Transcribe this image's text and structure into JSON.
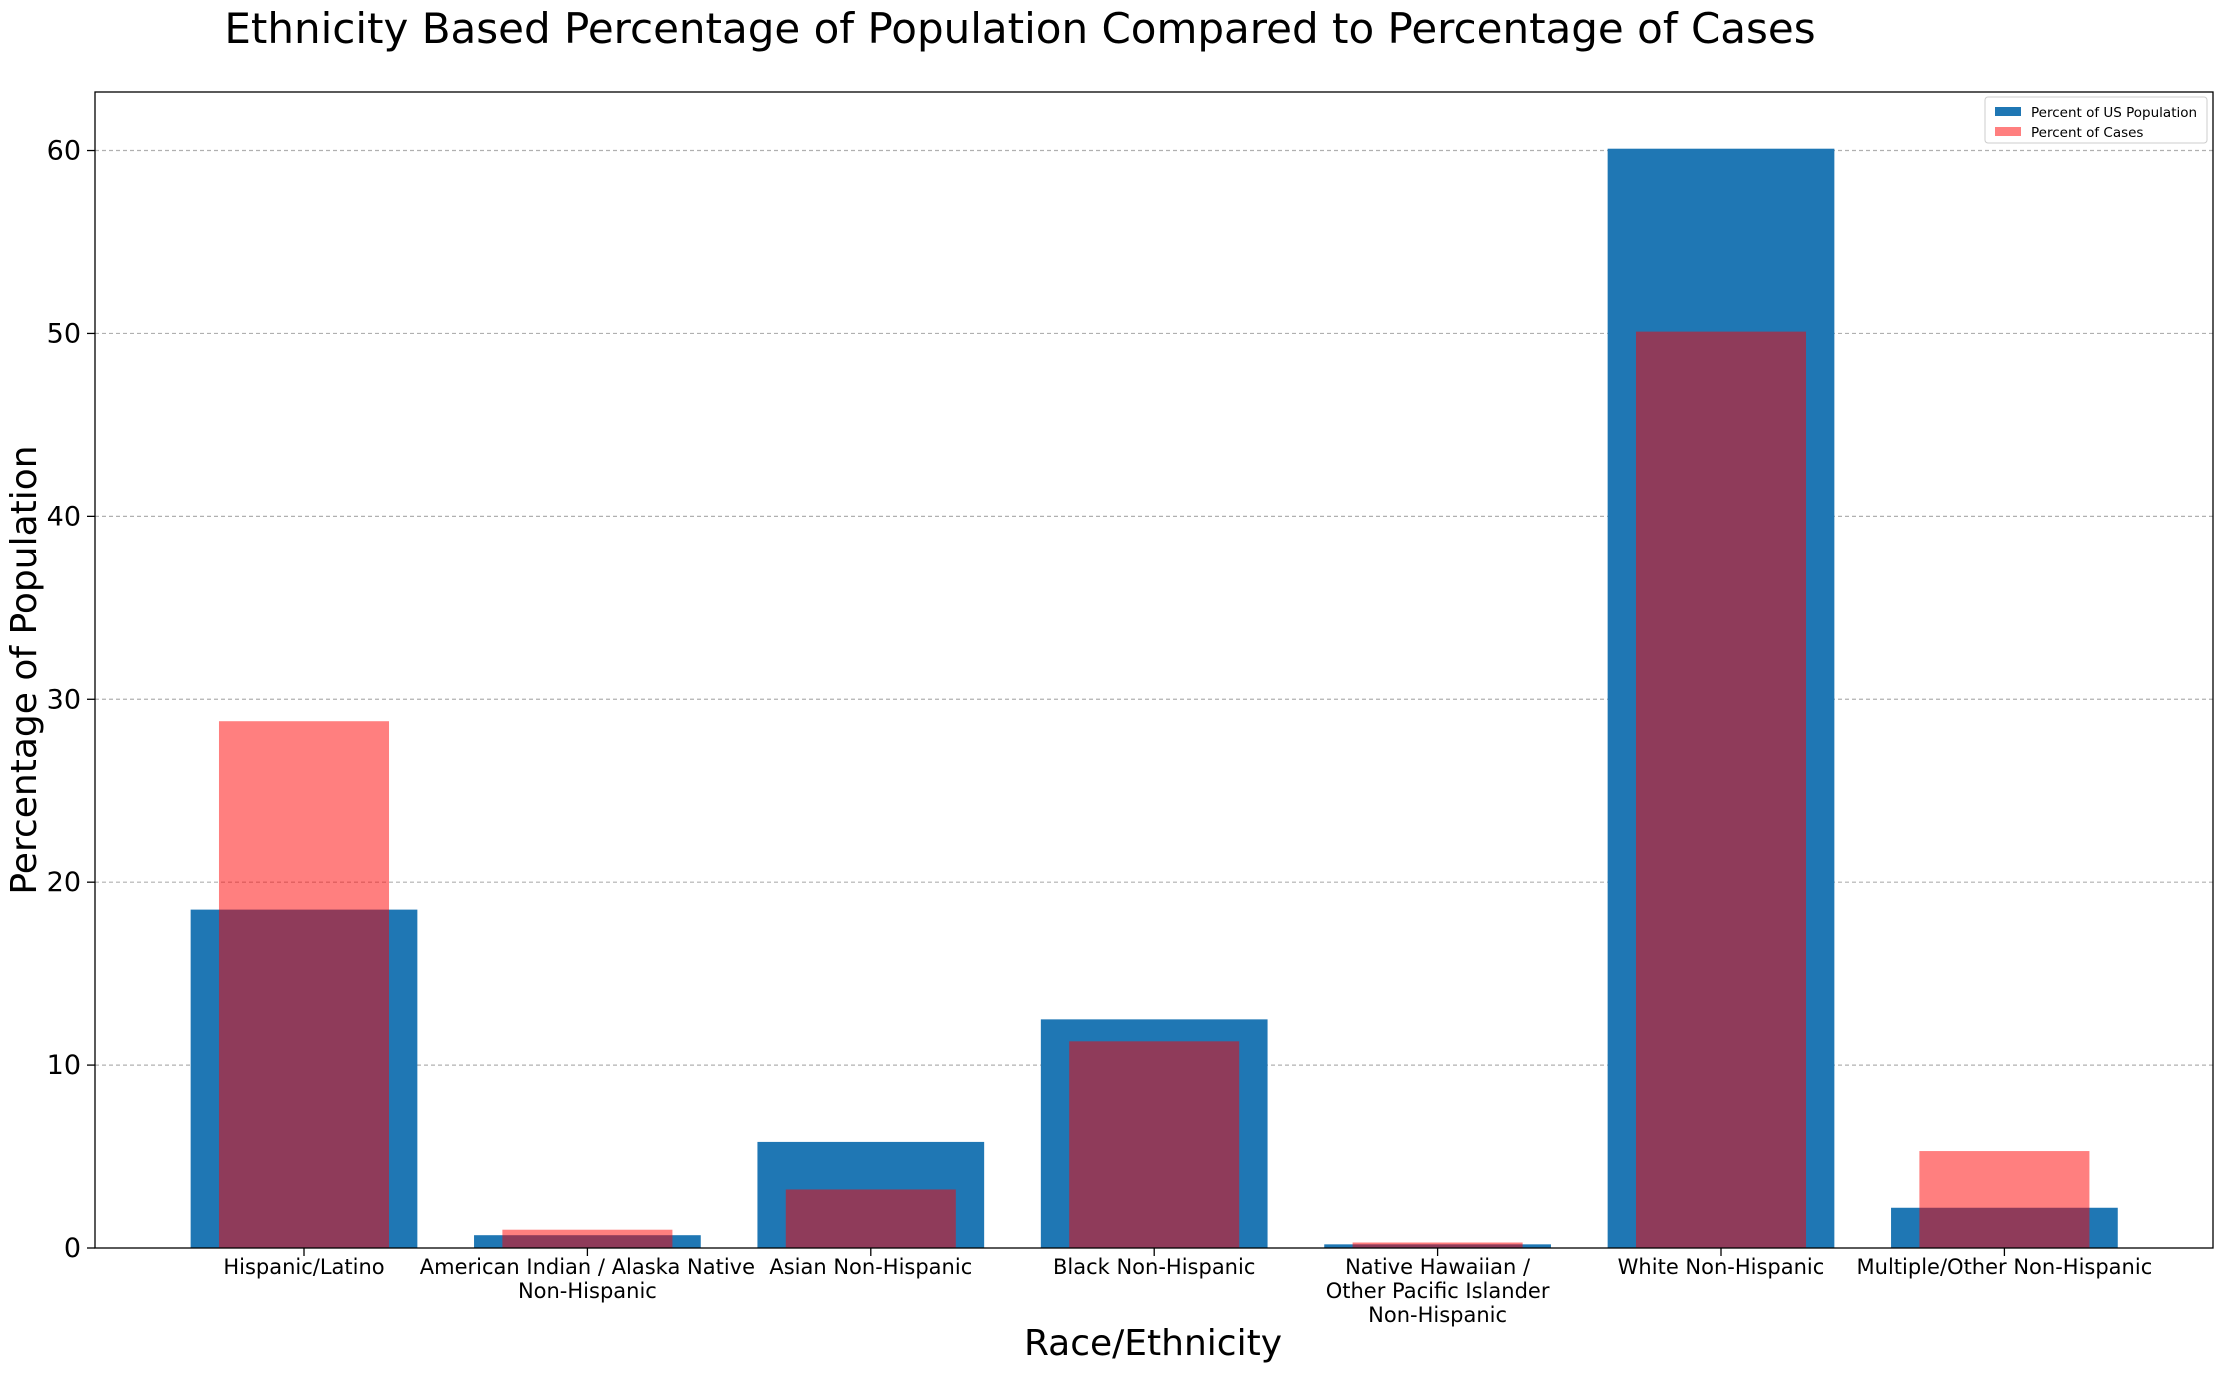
{
  "chart_data": {
    "type": "bar",
    "title": "Ethnicity Based Percentage of Population Compared to Percentage of Cases",
    "xlabel": "Race/Ethnicity",
    "ylabel": "Percentage of Population",
    "ylim": [
      0,
      63.2
    ],
    "yticks": [
      0,
      10,
      20,
      30,
      40,
      50,
      60
    ],
    "grid": "y-dashed",
    "legend_position": "top-right",
    "categories": [
      [
        "Hispanic/Latino"
      ],
      [
        "American Indian / Alaska Native",
        "Non-Hispanic"
      ],
      [
        "Asian Non-Hispanic"
      ],
      [
        "Black Non-Hispanic"
      ],
      [
        "Native Hawaiian /",
        "Other Pacific Islander",
        "Non-Hispanic"
      ],
      [
        "White Non-Hispanic"
      ],
      [
        "Multiple/Other Non-Hispanic"
      ]
    ],
    "series": [
      {
        "name": "Percent of US Population",
        "color": "#1f77b4",
        "opacity": 1,
        "width_fraction": 0.8,
        "values": [
          18.5,
          0.7,
          5.8,
          12.5,
          0.2,
          60.1,
          2.2
        ]
      },
      {
        "name": "Percent of Cases",
        "color": "#ff0000",
        "opacity": 0.5,
        "width_fraction": 0.6,
        "values": [
          28.8,
          1.0,
          3.2,
          11.3,
          0.3,
          50.1,
          5.3
        ]
      }
    ]
  }
}
